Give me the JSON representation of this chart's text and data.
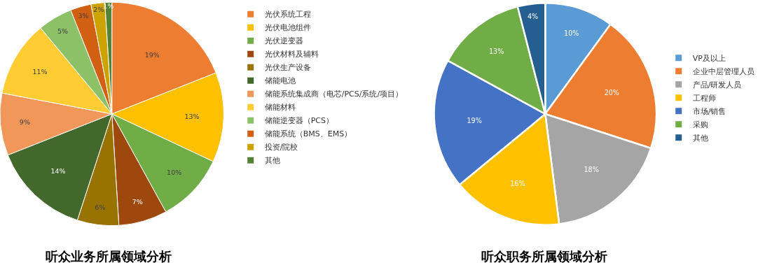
{
  "chart_data": [
    {
      "type": "pie",
      "title": "听众业务所属领域分析",
      "categories": [
        "光伏系统工程",
        "光伏电池组件",
        "光伏逆变器",
        "光伏材料及辅料",
        "光伏生产设备",
        "储能电池",
        "储能系统集成商（电芯/PCS/系统/项目）",
        "储能材料",
        "储能逆变器（PCS）",
        "储能系统（BMS、EMS）",
        "投资/院校",
        "其他"
      ],
      "values": [
        19,
        13,
        10,
        7,
        6,
        14,
        9,
        11,
        5,
        3,
        2,
        1
      ],
      "value_labels": [
        "19%",
        "13%",
        "10%",
        "7%",
        "6%",
        "14%",
        "9%",
        "11%",
        "5%",
        "3%",
        "2%",
        "1%"
      ],
      "colors": [
        "#ed7d31",
        "#ffc000",
        "#70ad47",
        "#9e480e",
        "#997300",
        "#43682b",
        "#f1975a",
        "#ffcd33",
        "#8cc168",
        "#d26012",
        "#cca300",
        "#548235"
      ],
      "legend": "right"
    },
    {
      "type": "pie",
      "title": "听众职务所属领域分析",
      "categories": [
        "VP及以上",
        "企业中层管理人员",
        "产品/研发人员",
        "工程师",
        "市场/销售",
        "采购",
        "其他"
      ],
      "values": [
        10,
        20,
        18,
        16,
        19,
        13,
        4
      ],
      "value_labels": [
        "10%",
        "20%",
        "18%",
        "16%",
        "19%",
        "13%",
        "4%"
      ],
      "colors": [
        "#5b9bd5",
        "#ed7d31",
        "#a5a5a5",
        "#ffc000",
        "#4472c4",
        "#70ad47",
        "#255e91"
      ],
      "legend": "right"
    }
  ]
}
